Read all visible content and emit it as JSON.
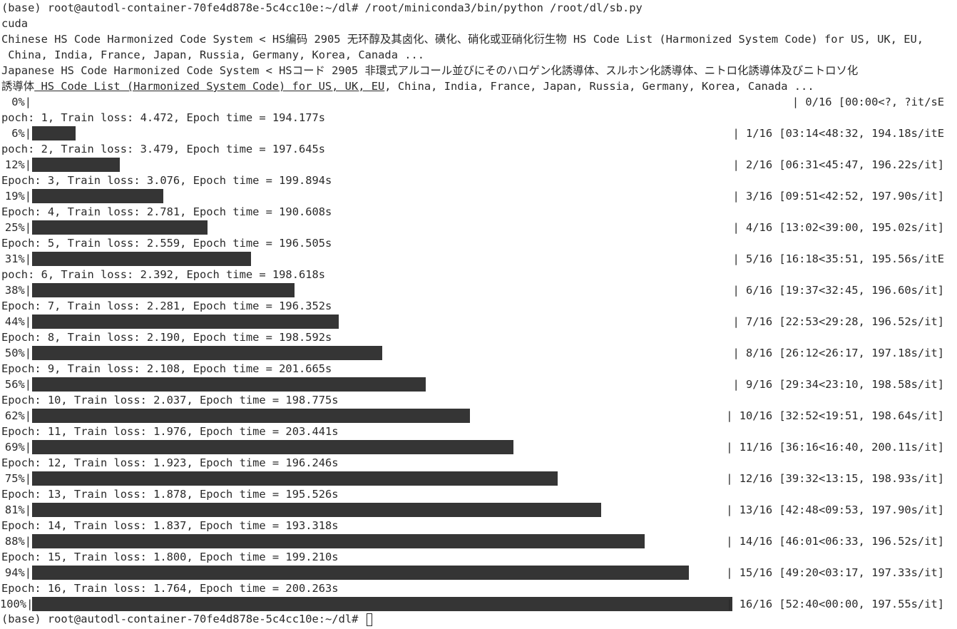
{
  "prompt": "(base) root@autodl-container-70fe4d878e-5c4cc10e:~/dl#",
  "command": "/root/miniconda3/bin/python /root/dl/sb.py",
  "device": "cuda",
  "chinese_line_1": "Chinese HS Code Harmonized Code System < HS编码 2905 无环醇及其卤化、磺化、硝化或亚硝化衍生物 HS Code List (Harmonized System Code) for US, UK, EU,",
  "chinese_line_2": " China, India, France, Japan, Russia, Germany, Korea, Canada ...",
  "japanese_line_1": "Japanese HS Code Harmonized Code System < HSコード 2905 非環式アルコール並びにそのハロゲン化誘導体、スルホン化誘導体、ニトロ化誘導体及びニトロソ化",
  "japanese_line_2_prefix": "誘導体",
  "japanese_line_2_underlined": " HS Code List (Harmonized System Code) for US, UK, EU",
  "japanese_line_2_suffix": ", China, India, France, Japan, Russia, Germany, Korea, Canada ...",
  "initial_progress": {
    "pct_label": "0%|",
    "stats": "| 0/16 [00:00<?, ?it/sE"
  },
  "epochs": [
    {
      "log": "poch: 1, Train loss: 4.472, Epoch time = 194.177s",
      "pct_label": "6%|",
      "fraction": 0.0625,
      "stats": "| 1/16 [03:14<48:32, 194.18s/itE"
    },
    {
      "log": "poch: 2, Train loss: 3.479, Epoch time = 197.645s",
      "pct_label": "12%|",
      "fraction": 0.125,
      "stats": "| 2/16 [06:31<45:47, 196.22s/it]"
    },
    {
      "log": "Epoch: 3, Train loss: 3.076, Epoch time = 199.894s",
      "pct_label": "19%|",
      "fraction": 0.1875,
      "stats": "| 3/16 [09:51<42:52, 197.90s/it]"
    },
    {
      "log": "Epoch: 4, Train loss: 2.781, Epoch time = 190.608s",
      "pct_label": "25%|",
      "fraction": 0.25,
      "stats": "| 4/16 [13:02<39:00, 195.02s/it]"
    },
    {
      "log": "Epoch: 5, Train loss: 2.559, Epoch time = 196.505s",
      "pct_label": "31%|",
      "fraction": 0.3125,
      "stats": "| 5/16 [16:18<35:51, 195.56s/itE"
    },
    {
      "log": "poch: 6, Train loss: 2.392, Epoch time = 198.618s",
      "pct_label": "38%|",
      "fraction": 0.375,
      "stats": "| 6/16 [19:37<32:45, 196.60s/it]"
    },
    {
      "log": "Epoch: 7, Train loss: 2.281, Epoch time = 196.352s",
      "pct_label": "44%|",
      "fraction": 0.4375,
      "stats": "| 7/16 [22:53<29:28, 196.52s/it]"
    },
    {
      "log": "Epoch: 8, Train loss: 2.190, Epoch time = 198.592s",
      "pct_label": "50%|",
      "fraction": 0.5,
      "stats": "| 8/16 [26:12<26:17, 197.18s/it]"
    },
    {
      "log": "Epoch: 9, Train loss: 2.108, Epoch time = 201.665s",
      "pct_label": "56%|",
      "fraction": 0.5625,
      "stats": "| 9/16 [29:34<23:10, 198.58s/it]"
    },
    {
      "log": "Epoch: 10, Train loss: 2.037, Epoch time = 198.775s",
      "pct_label": "62%|",
      "fraction": 0.625,
      "stats": "| 10/16 [32:52<19:51, 198.64s/it]"
    },
    {
      "log": "Epoch: 11, Train loss: 1.976, Epoch time = 203.441s",
      "pct_label": "69%|",
      "fraction": 0.6875,
      "stats": "| 11/16 [36:16<16:40, 200.11s/it]"
    },
    {
      "log": "Epoch: 12, Train loss: 1.923, Epoch time = 196.246s",
      "pct_label": "75%|",
      "fraction": 0.75,
      "stats": "| 12/16 [39:32<13:15, 198.93s/it]"
    },
    {
      "log": "Epoch: 13, Train loss: 1.878, Epoch time = 195.526s",
      "pct_label": "81%|",
      "fraction": 0.8125,
      "stats": "| 13/16 [42:48<09:53, 197.90s/it]"
    },
    {
      "log": "Epoch: 14, Train loss: 1.837, Epoch time = 193.318s",
      "pct_label": "88%|",
      "fraction": 0.875,
      "stats": "| 14/16 [46:01<06:33, 196.52s/it]"
    },
    {
      "log": "Epoch: 15, Train loss: 1.800, Epoch time = 199.210s",
      "pct_label": "94%|",
      "fraction": 0.9375,
      "stats": "| 15/16 [49:20<03:17, 197.33s/it]"
    },
    {
      "log": "Epoch: 16, Train loss: 1.764, Epoch time = 200.263s",
      "pct_label": "100%|",
      "fraction": 1.0,
      "stats": "| 16/16 [52:40<00:00, 197.55s/it]"
    }
  ]
}
